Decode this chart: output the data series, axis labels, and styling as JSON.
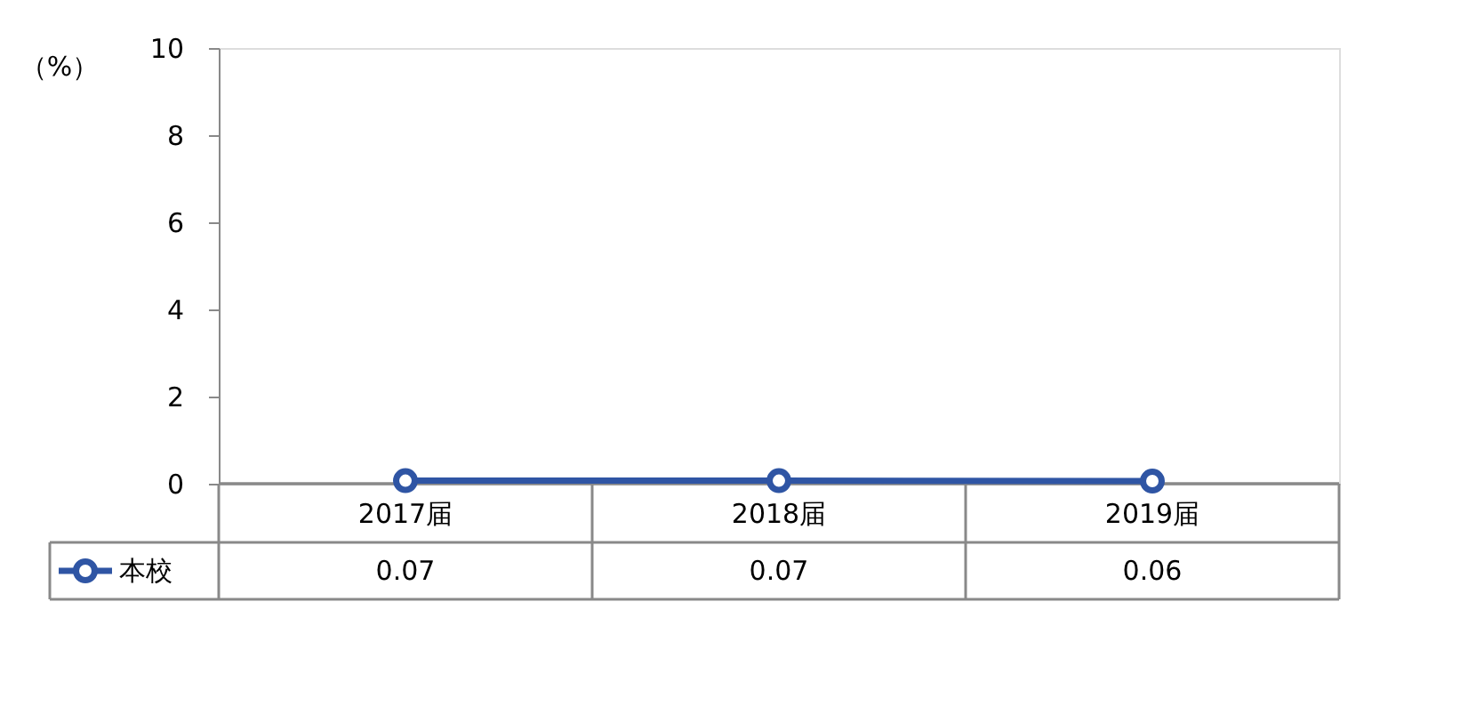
{
  "chart_data": {
    "type": "line",
    "ylabel": "（%）",
    "categories": [
      "2017届",
      "2018届",
      "2019届"
    ],
    "series": [
      {
        "name": "本校",
        "color": "#2f55a4",
        "values": [
          0.07,
          0.07,
          0.06
        ]
      }
    ],
    "ylim": [
      0,
      10
    ],
    "yticks": [
      0,
      2,
      4,
      6,
      8,
      10
    ],
    "marker": "circle",
    "line_style": "solid",
    "data_labels": true,
    "grid": false,
    "legend": "bottom left"
  }
}
